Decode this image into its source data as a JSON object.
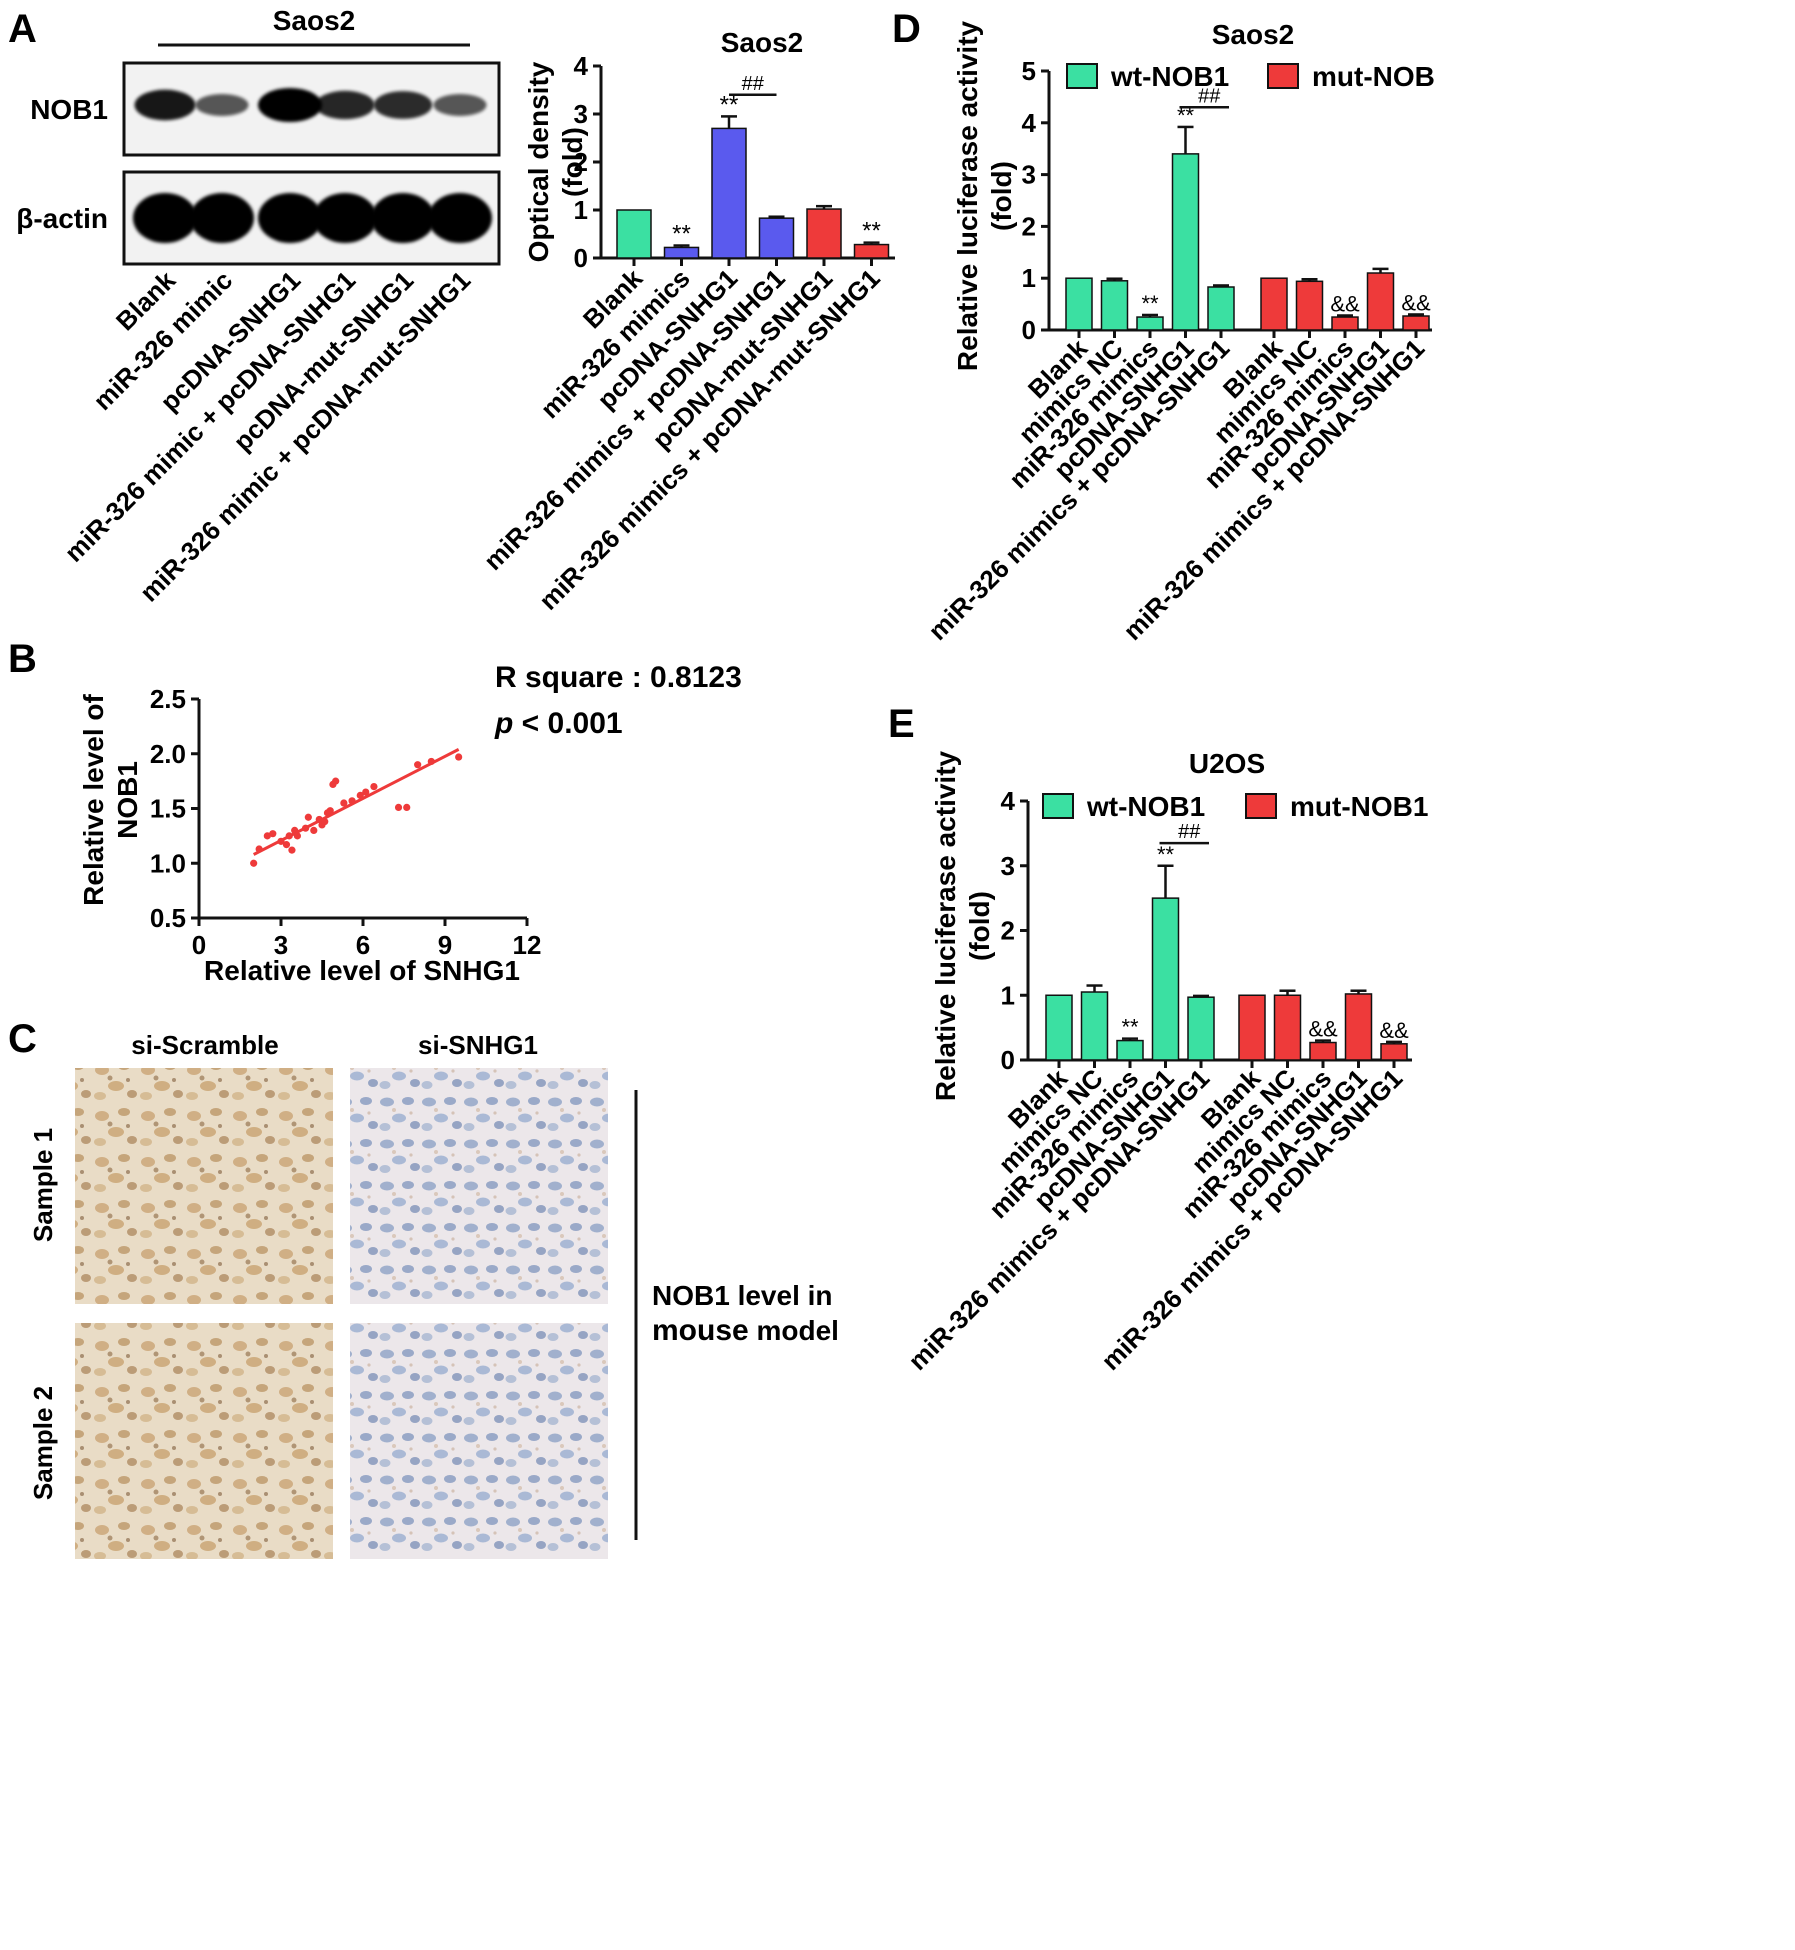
{
  "panels": {
    "A": {
      "letter": "A",
      "blot": {
        "cell_line": "Saos2",
        "bands": [
          {
            "name": "NOB1",
            "intensity": [
              0.85,
              0.45,
              1.0,
              0.75,
              0.72,
              0.45
            ]
          },
          {
            "name": "β-actin",
            "intensity": [
              1.0,
              1.0,
              1.0,
              1.0,
              1.0,
              1.0
            ]
          }
        ],
        "lane_labels": [
          "Blank",
          "miR-326 mimic",
          "pcDNA-SNHG1",
          "miR-326 mimic + pcDNA-SNHG1",
          "pcDNA-mut-SNHG1",
          "miR-326 mimic + pcDNA-mut-SNHG1"
        ]
      }
    },
    "B": {
      "letter": "B",
      "stats": {
        "r_square": "R square : 0.8123",
        "p_symbol": "p",
        "p_rest": " < 0.001"
      }
    },
    "C": {
      "letter": "C",
      "col_labels": [
        "si-Scramble",
        "si-SNHG1"
      ],
      "row_labels": [
        "Sample 1",
        "Sample 2"
      ],
      "side_note_1": "NOB1 level in",
      "side_note_2a": "mouse",
      "side_note_2b": " model"
    },
    "D": {
      "letter": "D"
    },
    "E": {
      "letter": "E"
    }
  },
  "colors": {
    "green": "#3be0a2",
    "blue": "#5a5aee",
    "red": "#ee3a3a",
    "axis": "#111111"
  },
  "chart_data": [
    {
      "id": "A-bar",
      "type": "bar",
      "title": "Saos2",
      "ylabel_lines": [
        "Optical density",
        "(fold)"
      ],
      "ylim": [
        0,
        4
      ],
      "yticks": [
        0,
        1,
        2,
        3,
        4
      ],
      "categories": [
        "Blank",
        "miR-326 mimics",
        "pcDNA-SNHG1",
        "miR-326 mimics + pcDNA-SNHG1",
        "pcDNA-mut-SNHG1",
        "miR-326 mimics + pcDNA-mut-SNHG1"
      ],
      "values": [
        1.0,
        0.22,
        2.7,
        0.83,
        1.02,
        0.28
      ],
      "errors": [
        0,
        0.04,
        0.25,
        0.03,
        0.06,
        0.04
      ],
      "bar_colors": [
        "#3be0a2",
        "#5a5aee",
        "#5a5aee",
        "#5a5aee",
        "#ee3a3a",
        "#ee3a3a"
      ],
      "annotations": [
        {
          "index": 1,
          "text": "**"
        },
        {
          "index": 2,
          "text": "**"
        },
        {
          "index": 5,
          "text": "**"
        }
      ],
      "bracket": {
        "from": 2,
        "to": 3,
        "y": 3.4,
        "text": "##"
      }
    },
    {
      "id": "B-scatter",
      "type": "scatter",
      "xlabel": "Relative level of SNHG1",
      "ylabel_lines": [
        "Relative level of",
        "NOB1"
      ],
      "xlim": [
        0,
        12
      ],
      "ylim": [
        0.5,
        2.5
      ],
      "xticks": [
        0,
        3,
        6,
        9,
        12
      ],
      "yticks": [
        0.5,
        1.0,
        1.5,
        2.0,
        2.5
      ],
      "points": [
        [
          2.0,
          1.0
        ],
        [
          2.2,
          1.13
        ],
        [
          2.5,
          1.25
        ],
        [
          2.7,
          1.27
        ],
        [
          3.0,
          1.2
        ],
        [
          3.2,
          1.17
        ],
        [
          3.3,
          1.25
        ],
        [
          3.4,
          1.12
        ],
        [
          3.5,
          1.3
        ],
        [
          3.6,
          1.25
        ],
        [
          3.9,
          1.32
        ],
        [
          4.0,
          1.42
        ],
        [
          4.2,
          1.3
        ],
        [
          4.4,
          1.4
        ],
        [
          4.5,
          1.35
        ],
        [
          4.6,
          1.38
        ],
        [
          4.7,
          1.46
        ],
        [
          4.8,
          1.48
        ],
        [
          4.9,
          1.72
        ],
        [
          5.0,
          1.75
        ],
        [
          5.3,
          1.55
        ],
        [
          5.6,
          1.57
        ],
        [
          5.9,
          1.62
        ],
        [
          6.1,
          1.65
        ],
        [
          6.4,
          1.7
        ],
        [
          7.3,
          1.51
        ],
        [
          7.6,
          1.51
        ],
        [
          8.0,
          1.9
        ],
        [
          8.5,
          1.93
        ],
        [
          9.5,
          1.97
        ]
      ],
      "fit": {
        "x": [
          2.0,
          9.5
        ],
        "y": [
          1.08,
          2.04
        ]
      }
    },
    {
      "id": "D-bar",
      "type": "bar",
      "title": "Saos2",
      "ylabel_lines": [
        "Relative luciferase activity",
        "(fold)"
      ],
      "ylim": [
        0,
        5
      ],
      "yticks": [
        0,
        1,
        2,
        3,
        4,
        5
      ],
      "legend": [
        "wt-NOB1",
        "mut-NOB"
      ],
      "categories": [
        "Blank",
        "mimics NC",
        "miR-326 mimics",
        "pcDNA-SNHG1",
        "miR-326 mimics + pcDNA-SNHG1"
      ],
      "series": [
        {
          "values": [
            1.0,
            0.95,
            0.25,
            3.4,
            0.83
          ],
          "errors": [
            0,
            0.04,
            0.04,
            0.52,
            0.03
          ],
          "color": "#3be0a2",
          "annotations": [
            {
              "index": 2,
              "text": "**"
            },
            {
              "index": 3,
              "text": "**"
            }
          ]
        },
        {
          "values": [
            1.0,
            0.94,
            0.25,
            1.1,
            0.27
          ],
          "errors": [
            0,
            0.04,
            0.03,
            0.08,
            0.03
          ],
          "color": "#ee3a3a",
          "annotations": [
            {
              "index": 2,
              "text": "&&"
            },
            {
              "index": 4,
              "text": "&&"
            }
          ]
        }
      ],
      "bracket": {
        "from": 3,
        "to": 4,
        "y": 4.3,
        "text": "##"
      }
    },
    {
      "id": "E-bar",
      "type": "bar",
      "title": "U2OS",
      "ylabel_lines": [
        "Relative luciferase activity",
        "(fold)"
      ],
      "ylim": [
        0,
        4
      ],
      "yticks": [
        0,
        1,
        2,
        3,
        4
      ],
      "legend": [
        "wt-NOB1",
        "mut-NOB1"
      ],
      "categories": [
        "Blank",
        "mimics NC",
        "miR-326 mimics",
        "pcDNA-SNHG1",
        "miR-326 mimics + pcDNA-SNHG1"
      ],
      "series": [
        {
          "values": [
            1.0,
            1.05,
            0.3,
            2.5,
            0.97
          ],
          "errors": [
            0,
            0.1,
            0.03,
            0.5,
            0.02
          ],
          "color": "#3be0a2",
          "annotations": [
            {
              "index": 2,
              "text": "**"
            },
            {
              "index": 3,
              "text": "**"
            }
          ]
        },
        {
          "values": [
            1.0,
            1.0,
            0.27,
            1.02,
            0.25
          ],
          "errors": [
            0,
            0.07,
            0.03,
            0.05,
            0.03
          ],
          "color": "#ee3a3a",
          "annotations": [
            {
              "index": 2,
              "text": "&&"
            },
            {
              "index": 4,
              "text": "&&"
            }
          ]
        }
      ],
      "bracket": {
        "from": 3,
        "to": 4,
        "y": 3.35,
        "text": "##"
      }
    }
  ]
}
